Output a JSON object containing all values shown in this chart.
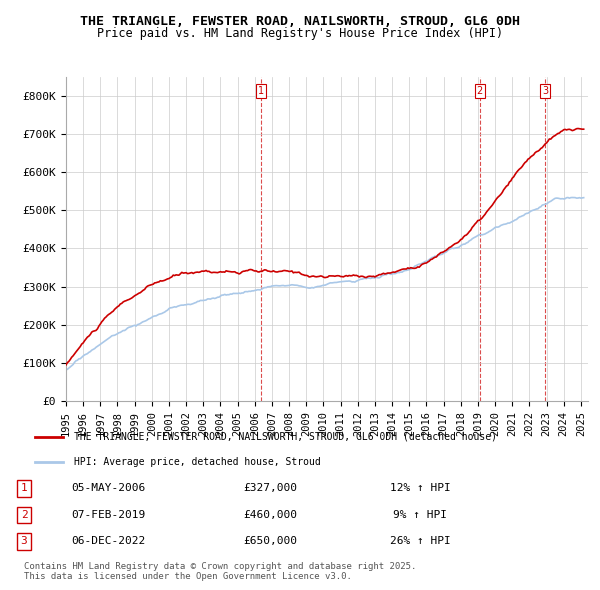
{
  "title": "THE TRIANGLE, FEWSTER ROAD, NAILSWORTH, STROUD, GL6 0DH",
  "subtitle": "Price paid vs. HM Land Registry's House Price Index (HPI)",
  "ylabel": "",
  "ylim": [
    0,
    850000
  ],
  "yticks": [
    0,
    100000,
    200000,
    300000,
    400000,
    500000,
    600000,
    700000,
    800000
  ],
  "ytick_labels": [
    "£0",
    "£100K",
    "£200K",
    "£300K",
    "£400K",
    "£500K",
    "£600K",
    "£700K",
    "£800K"
  ],
  "line_color_price": "#cc0000",
  "line_color_hpi": "#aac8e8",
  "purchase_dates": [
    "2006-05-05",
    "2019-02-07",
    "2022-12-06"
  ],
  "purchase_prices": [
    327000,
    460000,
    650000
  ],
  "purchase_labels": [
    "1",
    "2",
    "3"
  ],
  "purchase_info": [
    {
      "num": "1",
      "date": "05-MAY-2006",
      "price": "£327,000",
      "hpi": "12% ↑ HPI"
    },
    {
      "num": "2",
      "date": "07-FEB-2019",
      "price": "£460,000",
      "hpi": "9% ↑ HPI"
    },
    {
      "num": "3",
      "date": "06-DEC-2022",
      "price": "£650,000",
      "hpi": "26% ↑ HPI"
    }
  ],
  "legend_line1": "THE TRIANGLE, FEWSTER ROAD, NAILSWORTH, STROUD, GL6 0DH (detached house)",
  "legend_line2": "HPI: Average price, detached house, Stroud",
  "footer": "Contains HM Land Registry data © Crown copyright and database right 2025.\nThis data is licensed under the Open Government Licence v3.0.",
  "background_color": "#ffffff",
  "grid_color": "#cccccc"
}
